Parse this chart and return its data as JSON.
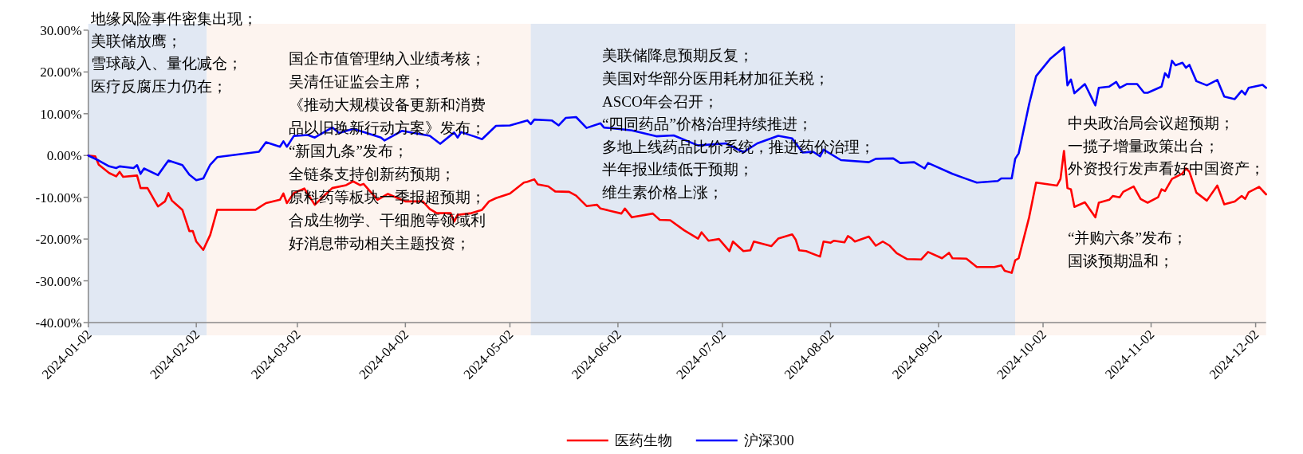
{
  "chart_data": {
    "type": "line",
    "annotations": [
      "地缘风险事件密集出现；",
      "美联储放鹰；",
      "雪球敲入、量化减仓；",
      "医疗反腐压力仍在；",
      "国企市值管理纳入业绩考核；",
      "吴清任证监会主席；",
      "《推动大规模设备更新和消费",
      "品以旧换新行动方案》发布；",
      "“新国九条”发布；",
      "全链条支持创新药预期；",
      "原料药等板块一季报超预期；",
      "合成生物学、干细胞等领域利",
      "好消息带动相关主题投资；",
      "美联储降息预期反复；",
      "美国对华部分医用耗材加征关税；",
      "ASCO年会召开；",
      "“四同药品”价格治理持续推进；",
      "多地上线药品比价系统，推进药价治理；",
      "半年报业绩低于预期；",
      "维生素价格上涨；",
      "中央政治局会议超预期；",
      "一揽子增量政策出台；",
      "外资投行发声看好中国资产；",
      "“并购六条”发布；",
      "国谈预期温和；"
    ],
    "xlim": [
      "2024-01-02",
      "2024-12-05"
    ],
    "xticks": [
      {
        "value": "2024-01-02",
        "label": "2024-01-02"
      },
      {
        "value": "2024-02-02",
        "label": "2024-02-02"
      },
      {
        "value": "2024-03-02",
        "label": "2024-03-02"
      },
      {
        "value": "2024-04-02",
        "label": "2024-04-02"
      },
      {
        "value": "2024-05-02",
        "label": "2024-05-02"
      },
      {
        "value": "2024-06-02",
        "label": "2024-06-02"
      },
      {
        "value": "2024-07-02",
        "label": "2024-07-02"
      },
      {
        "value": "2024-08-02",
        "label": "2024-08-02"
      },
      {
        "value": "2024-09-02",
        "label": "2024-09-02"
      },
      {
        "value": "2024-10-02",
        "label": "2024-10-02"
      },
      {
        "value": "2024-11-02",
        "label": "2024-11-02"
      },
      {
        "value": "2024-12-02",
        "label": "2024-12-02"
      }
    ],
    "ylim": [
      -40,
      30
    ],
    "yticks": [
      {
        "value": -40,
        "label": "-40.00%"
      },
      {
        "value": -30,
        "label": "-30.00%"
      },
      {
        "value": -20,
        "label": "-20.00%"
      },
      {
        "value": -10,
        "label": "-10.00%"
      },
      {
        "value": 0,
        "label": "0.00%"
      },
      {
        "value": 10,
        "label": "10.00%"
      },
      {
        "value": 20,
        "label": "20.00%"
      },
      {
        "value": 30,
        "label": "30.00%"
      }
    ],
    "bands": [
      {
        "axis": "x",
        "from": "2024-01-02",
        "to": "2024-02-05",
        "color": "#e1e8f3"
      },
      {
        "axis": "x",
        "from": "2024-02-05",
        "to": "2024-05-08",
        "color": "#fdf4ef"
      },
      {
        "axis": "x",
        "from": "2024-05-08",
        "to": "2024-09-24",
        "color": "#e1e8f3"
      },
      {
        "axis": "x",
        "from": "2024-09-24",
        "to": "2024-12-05",
        "color": "#fdf4ef"
      }
    ],
    "legend": "bottom",
    "grid": false,
    "marker": "none",
    "line_style": "solid",
    "series": [
      {
        "name": "医药生物",
        "color": "#ff0000",
        "x": [
          "2024-01-02",
          "2024-01-04",
          "2024-01-05",
          "2024-01-08",
          "2024-01-10",
          "2024-01-11",
          "2024-01-12",
          "2024-01-16",
          "2024-01-17",
          "2024-01-19",
          "2024-01-22",
          "2024-01-24",
          "2024-01-25",
          "2024-01-26",
          "2024-01-29",
          "2024-01-31",
          "2024-02-01",
          "2024-02-02",
          "2024-02-04",
          "2024-02-06",
          "2024-02-08",
          "2024-02-19",
          "2024-02-22",
          "2024-02-26",
          "2024-02-27",
          "2024-02-28",
          "2024-03-01",
          "2024-03-04",
          "2024-03-07",
          "2024-03-12",
          "2024-03-16",
          "2024-03-18",
          "2024-03-20",
          "2024-03-21",
          "2024-03-25",
          "2024-03-28",
          "2024-04-02",
          "2024-04-07",
          "2024-04-09",
          "2024-04-11",
          "2024-04-15",
          "2024-04-16",
          "2024-04-17",
          "2024-04-21",
          "2024-04-24",
          "2024-04-26",
          "2024-04-28",
          "2024-05-02",
          "2024-05-06",
          "2024-05-07",
          "2024-05-09",
          "2024-05-10",
          "2024-05-13",
          "2024-05-15",
          "2024-05-19",
          "2024-05-21",
          "2024-05-24",
          "2024-05-27",
          "2024-05-28",
          "2024-06-03",
          "2024-06-04",
          "2024-06-06",
          "2024-06-12",
          "2024-06-14",
          "2024-06-17",
          "2024-06-21",
          "2024-06-25",
          "2024-06-26",
          "2024-06-28",
          "2024-07-01",
          "2024-07-04",
          "2024-07-05",
          "2024-07-08",
          "2024-07-10",
          "2024-07-11",
          "2024-07-16",
          "2024-07-18",
          "2024-07-22",
          "2024-07-23",
          "2024-07-24",
          "2024-07-26",
          "2024-07-30",
          "2024-07-31",
          "2024-08-02",
          "2024-08-03",
          "2024-08-06",
          "2024-08-07",
          "2024-08-08",
          "2024-08-09",
          "2024-08-13",
          "2024-08-15",
          "2024-08-17",
          "2024-08-19",
          "2024-08-21",
          "2024-08-24",
          "2024-08-28",
          "2024-08-30",
          "2024-09-03",
          "2024-09-05",
          "2024-09-06",
          "2024-09-10",
          "2024-09-13",
          "2024-09-18",
          "2024-09-20",
          "2024-09-21",
          "2024-09-23",
          "2024-09-24",
          "2024-09-25",
          "2024-09-28",
          "2024-09-30",
          "2024-10-06",
          "2024-10-07",
          "2024-10-08",
          "2024-10-09",
          "2024-10-10",
          "2024-10-11",
          "2024-10-14",
          "2024-10-16",
          "2024-10-17",
          "2024-10-18",
          "2024-10-21",
          "2024-10-22",
          "2024-10-24",
          "2024-10-25",
          "2024-10-28",
          "2024-10-30",
          "2024-11-01",
          "2024-11-04",
          "2024-11-05",
          "2024-11-06",
          "2024-11-08",
          "2024-11-11",
          "2024-11-12",
          "2024-11-13",
          "2024-11-15",
          "2024-11-18",
          "2024-11-21",
          "2024-11-23",
          "2024-11-26",
          "2024-11-28",
          "2024-11-29",
          "2024-11-30",
          "2024-12-03",
          "2024-12-05"
        ],
        "values": [
          0,
          -0.2,
          -2.2,
          -4.2,
          -5.0,
          -3.9,
          -5.1,
          -4.8,
          -7.8,
          -7.8,
          -12.2,
          -11.0,
          -9.0,
          -10.8,
          -13.0,
          -18.1,
          -18.1,
          -20.6,
          -22.6,
          -19.0,
          -13.0,
          -13.0,
          -11.4,
          -10.6,
          -9.1,
          -11.4,
          -9.0,
          -7.9,
          -11.8,
          -7.8,
          -7.1,
          -6.2,
          -7.1,
          -6.8,
          -10.6,
          -9.2,
          -11.0,
          -11.0,
          -12.8,
          -13.8,
          -13.8,
          -15.8,
          -14.2,
          -13.8,
          -13.0,
          -11.0,
          -10.2,
          -9.1,
          -6.5,
          -6.3,
          -5.7,
          -6.9,
          -7.4,
          -8.6,
          -8.7,
          -9.6,
          -12.1,
          -11.8,
          -12.7,
          -13.9,
          -12.7,
          -14.8,
          -13.9,
          -15.4,
          -15.5,
          -17.9,
          -19.9,
          -18.4,
          -20.4,
          -20.0,
          -22.9,
          -20.6,
          -22.9,
          -22.7,
          -20.6,
          -21.7,
          -19.9,
          -18.9,
          -20.1,
          -22.7,
          -22.9,
          -24.2,
          -20.6,
          -20.9,
          -20.4,
          -20.8,
          -19.3,
          -19.8,
          -20.6,
          -19.4,
          -21.6,
          -20.6,
          -21.6,
          -23.4,
          -24.8,
          -24.9,
          -23.1,
          -24.6,
          -23.3,
          -24.6,
          -24.7,
          -26.7,
          -26.7,
          -26.3,
          -27.6,
          -28.1,
          -25.1,
          -24.6,
          -14.8,
          -6.5,
          -7.2,
          -5.6,
          1.1,
          -7.8,
          -8.1,
          -12.3,
          -11.2,
          -13.6,
          -14.8,
          -11.3,
          -10.6,
          -9.7,
          -10.0,
          -8.7,
          -7.4,
          -10.4,
          -11.3,
          -10.0,
          -8.1,
          -8.5,
          -5.6,
          -4.3,
          -3.1,
          -3.9,
          -8.9,
          -10.8,
          -7.2,
          -11.7,
          -11.0,
          -9.7,
          -10.4,
          -8.8,
          -7.5,
          -9.3
        ]
      },
      {
        "name": "沪深300",
        "color": "#0000ff",
        "x": [
          "2024-01-02",
          "2024-01-05",
          "2024-01-08",
          "2024-01-10",
          "2024-01-11",
          "2024-01-15",
          "2024-01-16",
          "2024-01-17",
          "2024-01-18",
          "2024-01-22",
          "2024-01-25",
          "2024-01-29",
          "2024-01-31",
          "2024-02-02",
          "2024-02-04",
          "2024-02-06",
          "2024-02-08",
          "2024-02-20",
          "2024-02-22",
          "2024-02-26",
          "2024-02-27",
          "2024-02-28",
          "2024-03-01",
          "2024-03-05",
          "2024-03-07",
          "2024-03-12",
          "2024-03-14",
          "2024-03-18",
          "2024-03-21",
          "2024-03-26",
          "2024-03-27",
          "2024-04-01",
          "2024-04-09",
          "2024-04-12",
          "2024-04-16",
          "2024-04-17",
          "2024-04-18",
          "2024-04-22",
          "2024-04-24",
          "2024-04-28",
          "2024-05-02",
          "2024-05-07",
          "2024-05-08",
          "2024-05-09",
          "2024-05-14",
          "2024-05-16",
          "2024-05-18",
          "2024-05-21",
          "2024-05-24",
          "2024-05-28",
          "2024-05-29",
          "2024-06-03",
          "2024-06-06",
          "2024-06-13",
          "2024-06-18",
          "2024-06-25",
          "2024-07-03",
          "2024-07-08",
          "2024-07-12",
          "2024-07-18",
          "2024-07-22",
          "2024-07-25",
          "2024-07-28",
          "2024-07-30",
          "2024-07-31",
          "2024-08-05",
          "2024-08-13",
          "2024-08-15",
          "2024-08-20",
          "2024-08-22",
          "2024-08-26",
          "2024-08-29",
          "2024-08-30",
          "2024-09-06",
          "2024-09-10",
          "2024-09-13",
          "2024-09-19",
          "2024-09-20",
          "2024-09-23",
          "2024-09-24",
          "2024-09-25",
          "2024-09-28",
          "2024-09-30",
          "2024-10-04",
          "2024-10-08",
          "2024-10-09",
          "2024-10-10",
          "2024-10-11",
          "2024-10-14",
          "2024-10-16",
          "2024-10-17",
          "2024-10-18",
          "2024-10-21",
          "2024-10-23",
          "2024-10-24",
          "2024-10-26",
          "2024-10-29",
          "2024-10-31",
          "2024-11-01",
          "2024-11-05",
          "2024-11-06",
          "2024-11-07",
          "2024-11-08",
          "2024-11-09",
          "2024-11-11",
          "2024-11-12",
          "2024-11-13",
          "2024-11-15",
          "2024-11-18",
          "2024-11-21",
          "2024-11-23",
          "2024-11-26",
          "2024-11-28",
          "2024-11-29",
          "2024-11-30",
          "2024-12-04",
          "2024-12-05"
        ],
        "values": [
          0,
          -1.2,
          -2.6,
          -3.0,
          -2.6,
          -3.0,
          -2.3,
          -4.4,
          -3.1,
          -4.7,
          -1.2,
          -2.3,
          -4.6,
          -5.9,
          -5.5,
          -2.2,
          -0.4,
          0.9,
          3.2,
          2.1,
          3.4,
          2.1,
          4.7,
          4.9,
          4.3,
          6.7,
          5.4,
          6.4,
          5.6,
          4.3,
          3.6,
          5.9,
          4.7,
          2.8,
          5.5,
          4.3,
          5.6,
          4.5,
          3.9,
          7.1,
          7.2,
          8.4,
          7.5,
          8.6,
          8.4,
          7.2,
          9.0,
          9.2,
          6.6,
          7.7,
          6.7,
          6.3,
          6.0,
          4.6,
          4.8,
          2.4,
          2.9,
          0.8,
          2.9,
          4.7,
          4.1,
          0.7,
          0.9,
          -0.2,
          1.4,
          -1.1,
          -1.6,
          -0.8,
          -0.7,
          -1.8,
          -1.6,
          -3.1,
          -1.8,
          -4.4,
          -5.6,
          -6.5,
          -6.1,
          -5.5,
          -5.5,
          -0.8,
          0.5,
          12.3,
          19.0,
          23.1,
          25.9,
          16.8,
          18.2,
          14.9,
          17.1,
          13.7,
          12.0,
          16.2,
          16.5,
          17.6,
          16.2,
          17.1,
          17.1,
          15.0,
          15.0,
          16.5,
          19.7,
          18.7,
          22.7,
          21.6,
          22.2,
          21.0,
          21.7,
          17.8,
          16.8,
          18.1,
          14.1,
          13.5,
          15.5,
          14.6,
          16.2,
          16.9,
          16.2
        ]
      }
    ]
  }
}
